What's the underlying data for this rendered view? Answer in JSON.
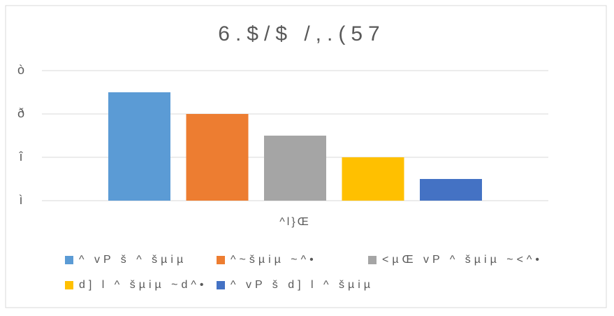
{
  "chart_data": {
    "type": "bar",
    "title": "6.$/$ /,.(57",
    "categories": [
      "^l}Œ"
    ],
    "series": [
      {
        "name": "^ vP š ^ šµiµ",
        "color": "#5b9bd5",
        "values": [
          5
        ]
      },
      {
        "name": "^~šµiµ ~^•",
        "color": "#ed7d31",
        "values": [
          4
        ]
      },
      {
        "name": "<µŒ vP ^ šµiµ ~<^•",
        "color": "#a5a5a5",
        "values": [
          3
        ]
      },
      {
        "name": "d] l ^ šµiµ ~d^•",
        "color": "#ffc000",
        "values": [
          2
        ]
      },
      {
        "name": "^ vP š d] l ^ šµiµ",
        "color": "#4472c4",
        "values": [
          1
        ]
      }
    ],
    "ylim": [
      0,
      6
    ],
    "yticks": [
      {
        "value": 0,
        "label": "ì"
      },
      {
        "value": 2,
        "label": "î"
      },
      {
        "value": 4,
        "label": "ð"
      },
      {
        "value": 6,
        "label": "ò"
      }
    ],
    "grid": true,
    "legend": "bottom"
  }
}
